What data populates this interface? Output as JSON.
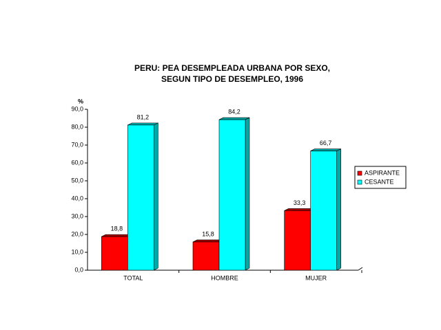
{
  "chart_data": {
    "type": "bar3d",
    "title": [
      "PERU: PEA DESEMPLEADA URBANA POR SEXO,",
      "SEGUN TIPO DE DESEMPLEO, 1996"
    ],
    "y_label": "%",
    "categories": [
      "TOTAL",
      "HOMBRE",
      "MUJER"
    ],
    "series": [
      {
        "name": "ASPIRANTE",
        "color": "#ff0000",
        "side_color": "#a00000",
        "values": [
          18.8,
          15.8,
          33.3
        ],
        "value_labels": [
          "18,8",
          "15,8",
          "33,3"
        ]
      },
      {
        "name": "CESANTE",
        "color": "#00ffff",
        "side_color": "#00a8a8",
        "values": [
          81.2,
          84.2,
          66.7
        ],
        "value_labels": [
          "81,2",
          "84,2",
          "66,7"
        ]
      }
    ],
    "ylim": [
      0,
      90
    ],
    "yticks": [
      {
        "value": 0,
        "label": "0,0"
      },
      {
        "value": 10,
        "label": "10,0"
      },
      {
        "value": 20,
        "label": "20,0"
      },
      {
        "value": 30,
        "label": "30,0"
      },
      {
        "value": 40,
        "label": "40,0"
      },
      {
        "value": 50,
        "label": "50,0"
      },
      {
        "value": 60,
        "label": "60,0"
      },
      {
        "value": 70,
        "label": "70,0"
      },
      {
        "value": 80,
        "label": "80,0"
      },
      {
        "value": 90,
        "label": "90,0"
      }
    ],
    "legend": "right"
  }
}
